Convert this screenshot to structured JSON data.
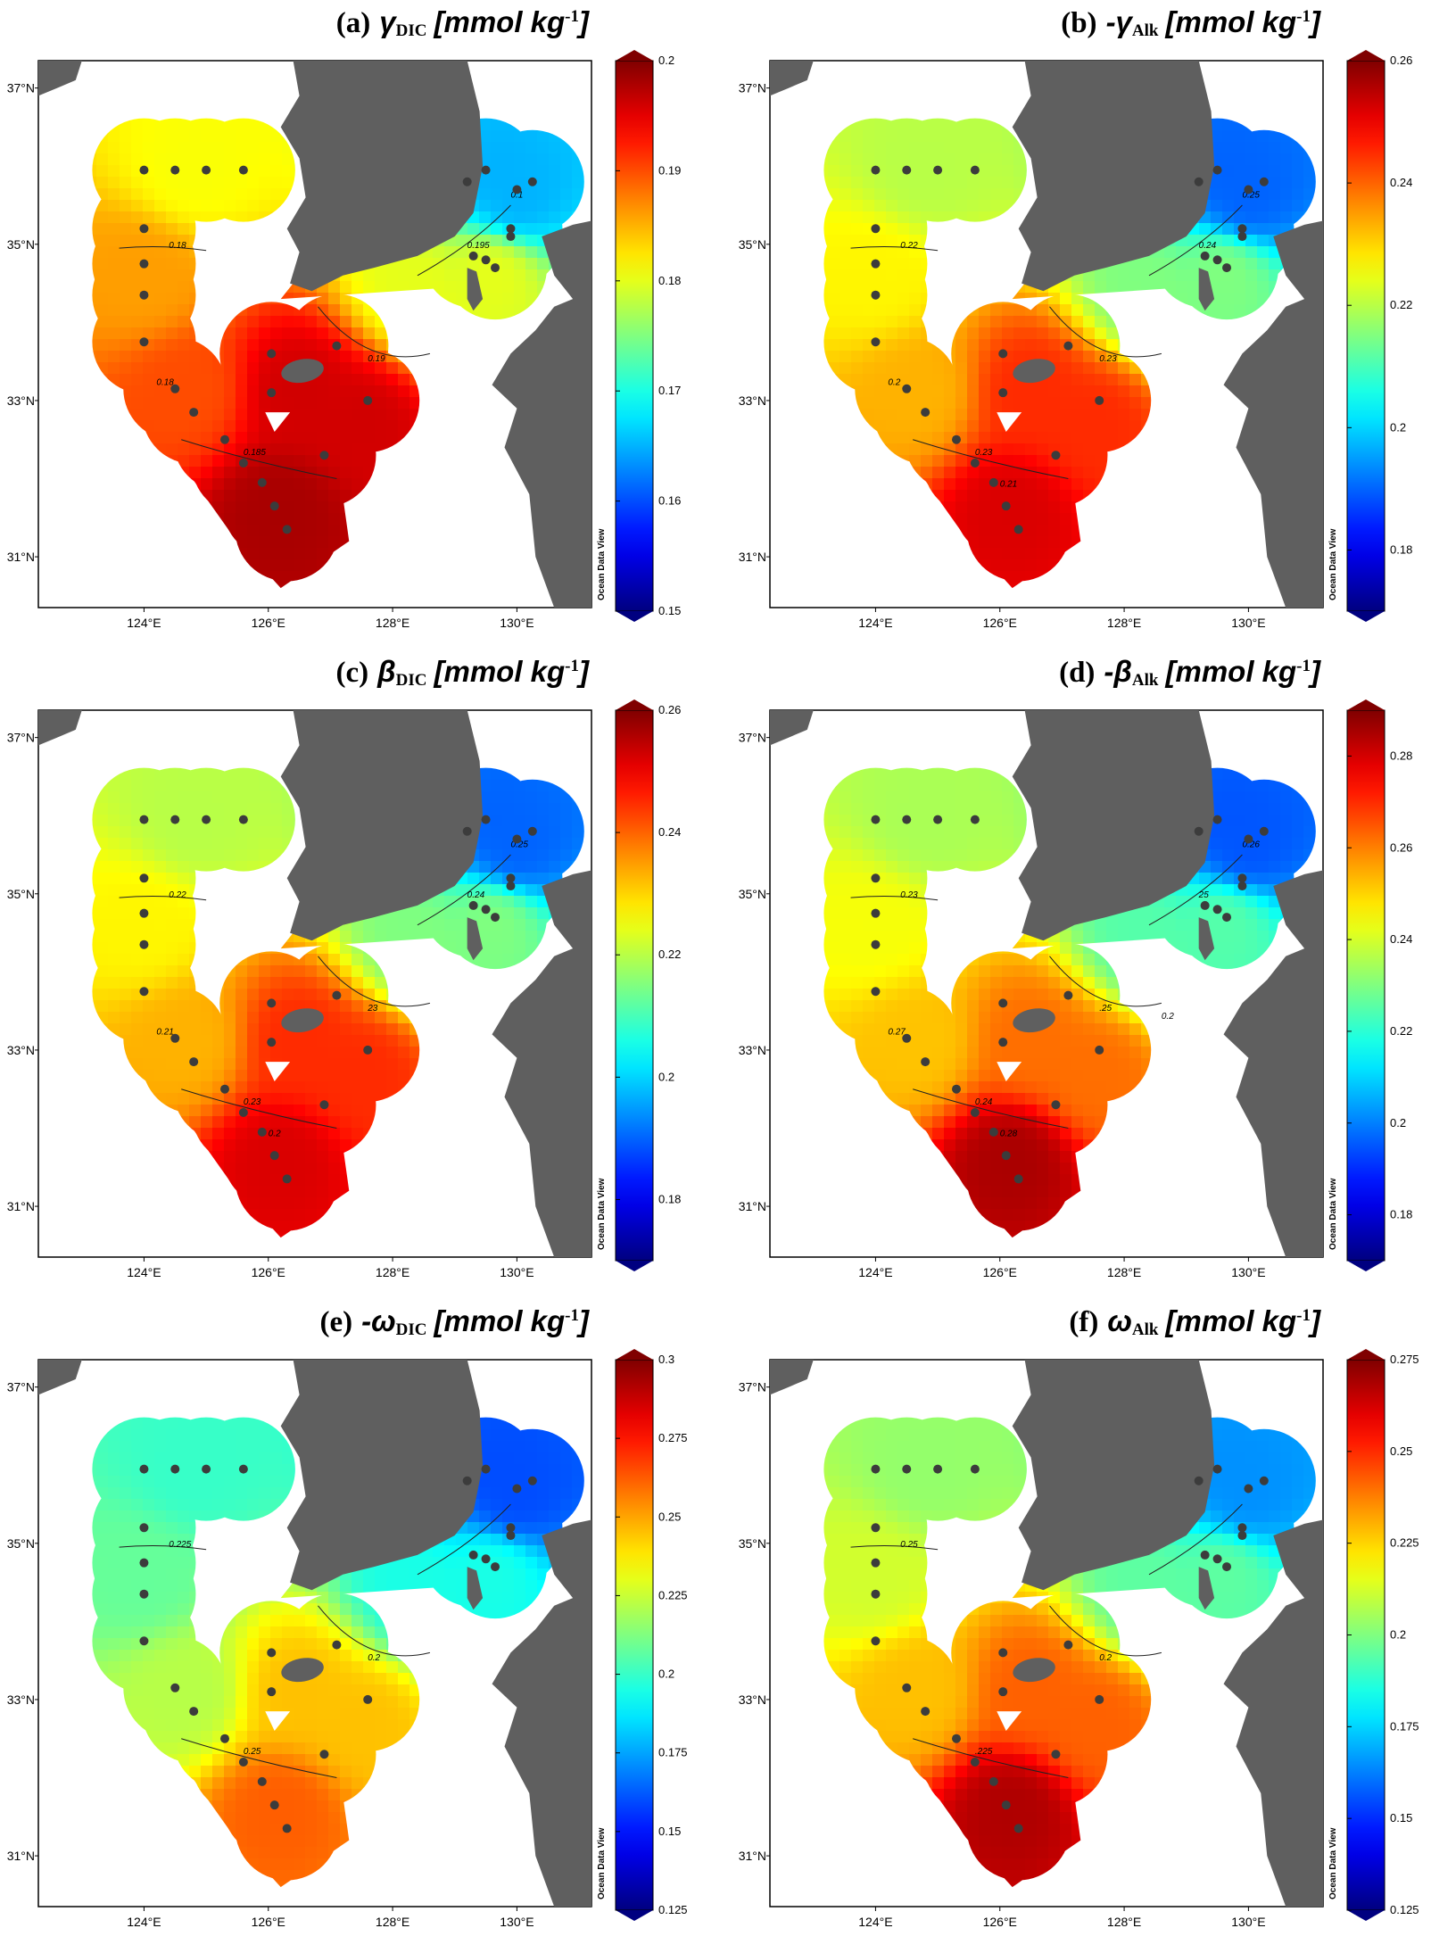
{
  "chart_data": [
    {
      "id": "a",
      "type": "heatmap",
      "label": "(a)",
      "symbol": "γ",
      "sub": "DIC",
      "unit": "[mmol kg",
      "unit_exp": "-1",
      "unit_close": "]",
      "colorbar": {
        "min": 0.15,
        "max": 0.2,
        "ticks": [
          "0.2",
          "0.19",
          "0.18",
          "0.17",
          "0.16",
          "0.15"
        ],
        "tick_values": [
          0.2,
          0.19,
          0.18,
          0.17,
          0.16,
          0.15
        ]
      },
      "contour_labels": [
        "0.18",
        "0.185",
        "0.19",
        "0.195",
        "0.1",
        "0.18"
      ],
      "field": {
        "north": 0.181,
        "west": 0.186,
        "southwest": 0.19,
        "jeju": 0.196,
        "south": 0.198,
        "east": 0.18,
        "northeast": 0.165
      }
    },
    {
      "id": "b",
      "type": "heatmap",
      "label": "(b)",
      "symbol": "-γ",
      "sub": "Alk",
      "unit": "[mmol kg",
      "unit_exp": "-1",
      "unit_close": "]",
      "colorbar": {
        "min": 0.17,
        "max": 0.26,
        "ticks": [
          "0.26",
          "0.24",
          "0.22",
          "0.2",
          "0.18"
        ],
        "tick_values": [
          0.26,
          0.24,
          0.22,
          0.2,
          0.18
        ]
      },
      "contour_labels": [
        "0.22",
        "0.23",
        "0.23",
        "0.24",
        "0.25",
        "0.2",
        "0.21"
      ],
      "field": {
        "north": 0.22,
        "west": 0.227,
        "southwest": 0.233,
        "jeju": 0.245,
        "south": 0.252,
        "east": 0.215,
        "northeast": 0.19
      }
    },
    {
      "id": "c",
      "type": "heatmap",
      "label": "(c)",
      "symbol": "β",
      "sub": "DIC",
      "unit": "[mmol kg",
      "unit_exp": "-1",
      "unit_close": "]",
      "colorbar": {
        "min": 0.17,
        "max": 0.26,
        "ticks": [
          "0.26",
          "0.24",
          "0.22",
          "0.2",
          "0.18"
        ],
        "tick_values": [
          0.26,
          0.24,
          0.22,
          0.2,
          0.18
        ]
      },
      "contour_labels": [
        "0.22",
        "0.23",
        "23",
        "0.24",
        "0.25",
        "0.21",
        "0.2"
      ],
      "field": {
        "north": 0.22,
        "west": 0.227,
        "southwest": 0.233,
        "jeju": 0.245,
        "south": 0.252,
        "east": 0.215,
        "northeast": 0.19
      }
    },
    {
      "id": "d",
      "type": "heatmap",
      "label": "(d)",
      "symbol": "-β",
      "sub": "Alk",
      "unit": "[mmol kg",
      "unit_exp": "-1",
      "unit_close": "]",
      "colorbar": {
        "min": 0.17,
        "max": 0.29,
        "ticks": [
          "0.28",
          "0.26",
          "0.24",
          "0.22",
          "0.2",
          "0.18"
        ],
        "tick_values": [
          0.28,
          0.26,
          0.24,
          0.22,
          0.2,
          0.18
        ]
      },
      "contour_labels": [
        "0.23",
        "0.24",
        ".25",
        "25",
        "0.26",
        "0.27",
        "0.28",
        "0.2"
      ],
      "field": {
        "north": 0.235,
        "west": 0.244,
        "southwest": 0.252,
        "jeju": 0.262,
        "south": 0.285,
        "east": 0.225,
        "northeast": 0.195
      }
    },
    {
      "id": "e",
      "type": "heatmap",
      "label": "(e)",
      "symbol": "-ω",
      "sub": "DIC",
      "unit": "[mmol kg",
      "unit_exp": "-1",
      "unit_close": "]",
      "colorbar": {
        "min": 0.125,
        "max": 0.3,
        "ticks": [
          "0.3",
          "0.275",
          "0.25",
          "0.225",
          "0.2",
          "0.175",
          "0.15",
          "0.125"
        ],
        "tick_values": [
          0.3,
          0.275,
          0.25,
          0.225,
          0.2,
          0.175,
          0.15,
          0.125
        ]
      },
      "contour_labels": [
        "0.225",
        "0.25",
        "0.2"
      ],
      "field": {
        "north": 0.2,
        "west": 0.208,
        "southwest": 0.222,
        "jeju": 0.245,
        "south": 0.262,
        "east": 0.195,
        "northeast": 0.16
      }
    },
    {
      "id": "f",
      "type": "heatmap",
      "label": "(f)",
      "symbol": "ω",
      "sub": "Alk",
      "unit": "[mmol kg",
      "unit_exp": "-1",
      "unit_close": "]",
      "colorbar": {
        "min": 0.125,
        "max": 0.275,
        "ticks": [
          "0.275",
          "0.25",
          "0.225",
          "0.2",
          "0.175",
          "0.15",
          "0.125"
        ],
        "tick_values": [
          0.275,
          0.25,
          0.225,
          0.2,
          0.175,
          0.15,
          0.125
        ]
      },
      "contour_labels": [
        "0.25",
        ".225",
        "0.2"
      ],
      "field": {
        "north": 0.203,
        "west": 0.212,
        "southwest": 0.228,
        "jeju": 0.242,
        "south": 0.268,
        "east": 0.195,
        "northeast": 0.165
      }
    }
  ],
  "axes": {
    "x_ticks": [
      "124°E",
      "126°E",
      "128°E",
      "130°E"
    ],
    "y_ticks": [
      "37°N",
      "35°N",
      "33°N",
      "31°N"
    ]
  },
  "watermark": "Ocean Data View"
}
